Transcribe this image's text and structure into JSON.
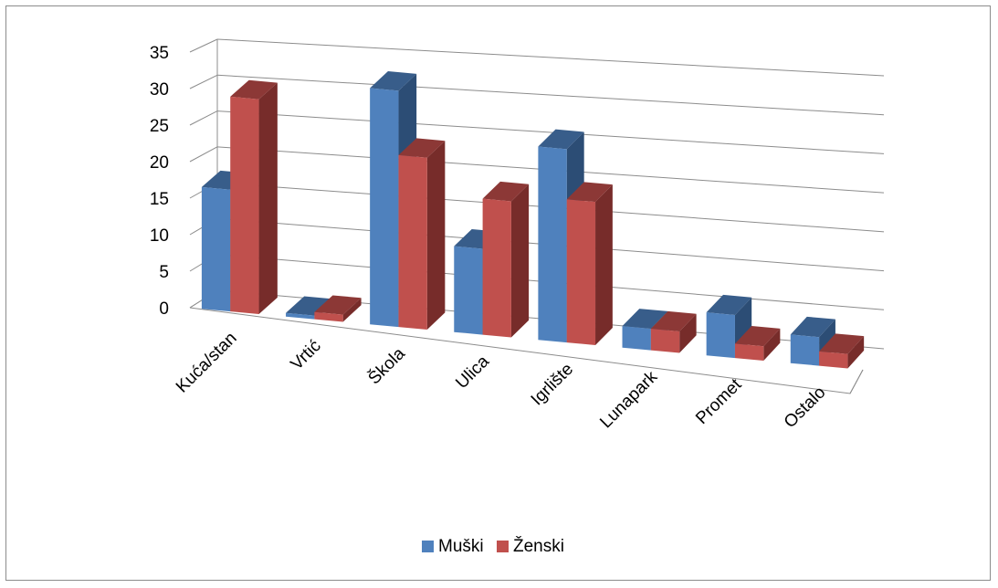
{
  "chart_data": {
    "type": "bar",
    "title": "",
    "xlabel": "",
    "ylabel": "",
    "ylim": [
      0,
      35
    ],
    "yticks": [
      0,
      5,
      10,
      15,
      20,
      25,
      30,
      35
    ],
    "categories": [
      "Kuća/stan",
      "Vrtić",
      "Škola",
      "Ulica",
      "Igrlište",
      "Lunapark",
      "Promet",
      "Ostalo"
    ],
    "series": [
      {
        "name": "Muški",
        "values": [
          17,
          0.5,
          33,
          12,
          27,
          3,
          6,
          4
        ]
      },
      {
        "name": "Ženski",
        "values": [
          30,
          1,
          24,
          19,
          20,
          3,
          2,
          2
        ]
      }
    ],
    "grid": true,
    "legend": "bottom",
    "colors": {
      "Muški": "#4f81bd",
      "Ženski": "#c0504d"
    }
  }
}
